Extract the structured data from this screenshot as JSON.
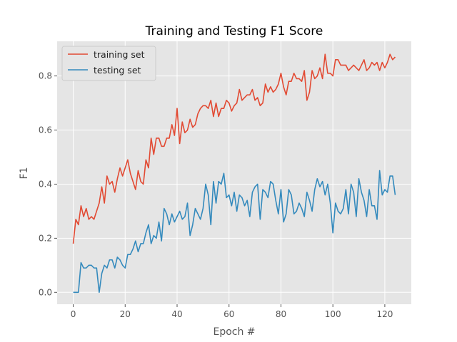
{
  "chart_data": {
    "type": "line",
    "title": "Training and Testing F1 Score",
    "xlabel": "Epoch #",
    "ylabel": "F1",
    "xlim": [
      -6.2,
      130.2
    ],
    "ylim": [
      -0.044,
      0.928
    ],
    "xticks": [
      0,
      20,
      40,
      60,
      80,
      100,
      120
    ],
    "yticks": [
      0.0,
      0.2,
      0.4,
      0.6,
      0.8
    ],
    "ytick_labels": [
      "0.0",
      "0.2",
      "0.4",
      "0.6",
      "0.8"
    ],
    "grid": true,
    "background": "#e5e5e5",
    "legend_position": "top-left",
    "series": [
      {
        "name": "training set",
        "color": "#e24a33",
        "values": [
          0.18,
          0.27,
          0.25,
          0.32,
          0.28,
          0.31,
          0.27,
          0.28,
          0.27,
          0.3,
          0.33,
          0.39,
          0.33,
          0.43,
          0.4,
          0.41,
          0.37,
          0.42,
          0.46,
          0.43,
          0.46,
          0.49,
          0.44,
          0.41,
          0.38,
          0.45,
          0.41,
          0.4,
          0.49,
          0.46,
          0.57,
          0.51,
          0.57,
          0.57,
          0.54,
          0.54,
          0.57,
          0.57,
          0.62,
          0.58,
          0.68,
          0.55,
          0.63,
          0.59,
          0.6,
          0.64,
          0.61,
          0.62,
          0.66,
          0.68,
          0.69,
          0.69,
          0.68,
          0.71,
          0.65,
          0.7,
          0.65,
          0.68,
          0.68,
          0.71,
          0.7,
          0.67,
          0.69,
          0.7,
          0.75,
          0.71,
          0.72,
          0.73,
          0.73,
          0.75,
          0.71,
          0.72,
          0.69,
          0.7,
          0.77,
          0.74,
          0.76,
          0.74,
          0.75,
          0.77,
          0.81,
          0.76,
          0.73,
          0.78,
          0.78,
          0.81,
          0.79,
          0.79,
          0.78,
          0.82,
          0.71,
          0.74,
          0.82,
          0.79,
          0.8,
          0.83,
          0.79,
          0.88,
          0.81,
          0.81,
          0.8,
          0.86,
          0.86,
          0.84,
          0.84,
          0.84,
          0.82,
          0.83,
          0.84,
          0.83,
          0.82,
          0.84,
          0.86,
          0.82,
          0.83,
          0.85,
          0.84,
          0.85,
          0.82,
          0.85,
          0.83,
          0.85,
          0.88,
          0.86,
          0.87
        ]
      },
      {
        "name": "testing set",
        "color": "#348abd",
        "values": [
          0.0,
          0.0,
          0.0,
          0.11,
          0.09,
          0.09,
          0.1,
          0.1,
          0.09,
          0.09,
          0.0,
          0.07,
          0.1,
          0.09,
          0.12,
          0.12,
          0.09,
          0.13,
          0.12,
          0.1,
          0.09,
          0.14,
          0.14,
          0.16,
          0.19,
          0.15,
          0.18,
          0.18,
          0.22,
          0.25,
          0.18,
          0.21,
          0.2,
          0.26,
          0.19,
          0.31,
          0.29,
          0.25,
          0.29,
          0.26,
          0.28,
          0.3,
          0.27,
          0.28,
          0.33,
          0.21,
          0.25,
          0.31,
          0.29,
          0.27,
          0.31,
          0.4,
          0.36,
          0.25,
          0.41,
          0.33,
          0.41,
          0.4,
          0.44,
          0.35,
          0.36,
          0.32,
          0.37,
          0.3,
          0.36,
          0.35,
          0.32,
          0.34,
          0.28,
          0.37,
          0.39,
          0.4,
          0.27,
          0.38,
          0.37,
          0.35,
          0.41,
          0.4,
          0.34,
          0.29,
          0.38,
          0.26,
          0.29,
          0.38,
          0.36,
          0.29,
          0.3,
          0.33,
          0.31,
          0.28,
          0.37,
          0.34,
          0.3,
          0.38,
          0.42,
          0.39,
          0.41,
          0.36,
          0.4,
          0.33,
          0.22,
          0.33,
          0.3,
          0.29,
          0.31,
          0.38,
          0.29,
          0.4,
          0.37,
          0.28,
          0.42,
          0.37,
          0.34,
          0.28,
          0.38,
          0.32,
          0.32,
          0.27,
          0.45,
          0.36,
          0.38,
          0.37,
          0.43,
          0.43,
          0.36
        ]
      }
    ]
  }
}
